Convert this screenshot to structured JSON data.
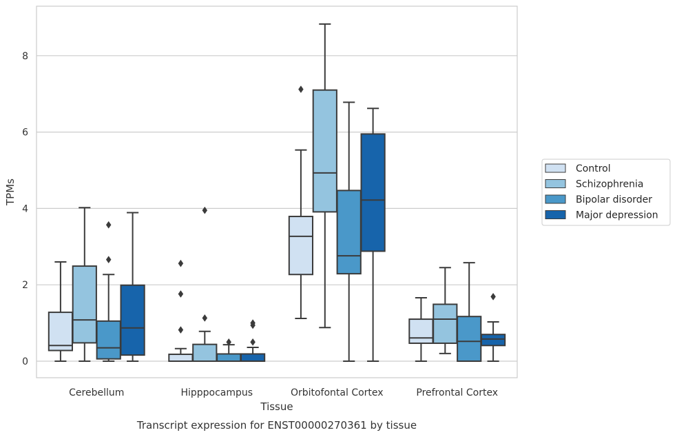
{
  "chart_data": {
    "type": "box",
    "title": "",
    "caption": "Transcript expression for ENST00000270361 by tissue",
    "xlabel": "Tissue",
    "ylabel": "TPMs",
    "ylim": [
      -0.42,
      9.3
    ],
    "yticks": [
      0,
      2,
      4,
      6,
      8
    ],
    "grid": "horizontal",
    "legend_position": "right",
    "categories": [
      "Cerebellum",
      "Hipppocampus",
      "Orbitofontal Cortex",
      "Prefrontal Cortex"
    ],
    "series": [
      {
        "name": "Control",
        "color": "#d0e1f2",
        "boxes": [
          {
            "whisker_low": 0.0,
            "q1": 0.28,
            "median": 0.41,
            "q3": 1.28,
            "whisker_high": 2.6,
            "outliers": []
          },
          {
            "whisker_low": 0.0,
            "q1": 0.0,
            "median": 0.0,
            "q3": 0.18,
            "whisker_high": 0.33,
            "outliers": [
              0.82,
              1.76,
              2.56
            ]
          },
          {
            "whisker_low": 1.12,
            "q1": 2.27,
            "median": 3.27,
            "q3": 3.79,
            "whisker_high": 5.53,
            "outliers": [
              7.12
            ]
          },
          {
            "whisker_low": 0.0,
            "q1": 0.47,
            "median": 0.61,
            "q3": 1.1,
            "whisker_high": 1.66,
            "outliers": []
          }
        ]
      },
      {
        "name": "Schizophrenia",
        "color": "#94c4df",
        "boxes": [
          {
            "whisker_low": 0.0,
            "q1": 0.48,
            "median": 1.08,
            "q3": 2.49,
            "whisker_high": 4.02,
            "outliers": []
          },
          {
            "whisker_low": 0.0,
            "q1": 0.0,
            "median": 0.0,
            "q3": 0.44,
            "whisker_high": 0.78,
            "outliers": [
              1.13,
              3.95
            ]
          },
          {
            "whisker_low": 0.88,
            "q1": 3.91,
            "median": 4.93,
            "q3": 7.1,
            "whisker_high": 8.83,
            "outliers": []
          },
          {
            "whisker_low": 0.2,
            "q1": 0.47,
            "median": 1.1,
            "q3": 1.49,
            "whisker_high": 2.45,
            "outliers": []
          }
        ]
      },
      {
        "name": "Bipolar disorder",
        "color": "#4a98c9",
        "boxes": [
          {
            "whisker_low": 0.0,
            "q1": 0.06,
            "median": 0.35,
            "q3": 1.05,
            "whisker_high": 2.27,
            "outliers": [
              2.66,
              3.57
            ]
          },
          {
            "whisker_low": 0.0,
            "q1": 0.0,
            "median": 0.0,
            "q3": 0.19,
            "whisker_high": 0.43,
            "outliers": [
              0.5
            ]
          },
          {
            "whisker_low": 0.0,
            "q1": 2.29,
            "median": 2.76,
            "q3": 4.47,
            "whisker_high": 6.78,
            "outliers": []
          },
          {
            "whisker_low": 0.0,
            "q1": 0.0,
            "median": 0.52,
            "q3": 1.17,
            "whisker_high": 2.58,
            "outliers": []
          }
        ]
      },
      {
        "name": "Major depression",
        "color": "#1764ab",
        "boxes": [
          {
            "whisker_low": 0.0,
            "q1": 0.16,
            "median": 0.87,
            "q3": 1.99,
            "whisker_high": 3.89,
            "outliers": []
          },
          {
            "whisker_low": 0.0,
            "q1": 0.0,
            "median": 0.0,
            "q3": 0.19,
            "whisker_high": 0.36,
            "outliers": [
              0.5,
              0.94,
              1.0
            ]
          },
          {
            "whisker_low": 0.0,
            "q1": 2.88,
            "median": 4.22,
            "q3": 5.95,
            "whisker_high": 6.62,
            "outliers": []
          },
          {
            "whisker_low": 0.0,
            "q1": 0.41,
            "median": 0.58,
            "q3": 0.7,
            "whisker_high": 1.03,
            "outliers": [
              1.69
            ]
          }
        ]
      }
    ]
  }
}
